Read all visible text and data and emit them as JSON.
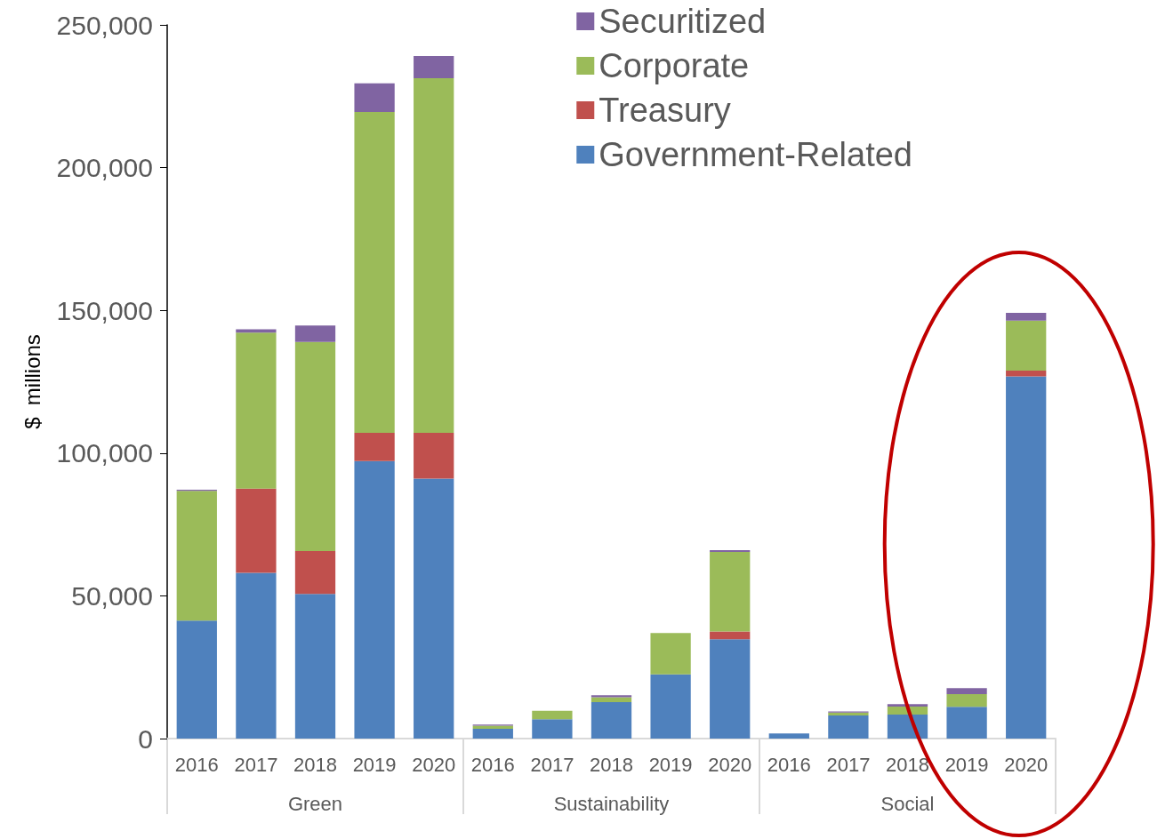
{
  "chart_data": {
    "type": "bar",
    "stacked": true,
    "ylabel": "$  millions",
    "categories": [
      "2016",
      "2017",
      "2018",
      "2019",
      "2020",
      "2016",
      "2017",
      "2018",
      "2019",
      "2020",
      "2016",
      "2017",
      "2018",
      "2019",
      "2020"
    ],
    "annotations": [
      "Green",
      "Sustainability",
      "Social"
    ],
    "series": [
      {
        "name": "Government-Related",
        "color": "#4f81bd",
        "values": [
          41300,
          58100,
          50700,
          97200,
          91100,
          3400,
          6800,
          12800,
          22500,
          34800,
          1800,
          8100,
          8400,
          11100,
          126900
        ]
      },
      {
        "name": "Treasury",
        "color": "#c0504d",
        "values": [
          null,
          29500,
          15000,
          9900,
          16000,
          null,
          null,
          null,
          null,
          2700,
          null,
          null,
          null,
          null,
          2000
        ]
      },
      {
        "name": "Corporate",
        "color": "#9bbb59",
        "values": [
          45500,
          54600,
          73200,
          112400,
          124200,
          1100,
          2900,
          1700,
          14500,
          27900,
          null,
          1000,
          2800,
          4500,
          17500
        ]
      },
      {
        "name": "Securitized",
        "color": "#8064a2",
        "values": [
          400,
          1200,
          5800,
          10000,
          7800,
          400,
          null,
          700,
          null,
          600,
          null,
          400,
          900,
          2100,
          2700
        ]
      }
    ],
    "ylim": [
      0,
      250000
    ],
    "yticks": [
      0,
      {
        "value": 50000,
        "label": "50,000"
      },
      {
        "value": 100000,
        "label": "100,000"
      },
      {
        "value": 150000,
        "label": "150,000"
      },
      {
        "value": 200000,
        "label": "200,000"
      },
      {
        "value": 250000,
        "label": "250,000"
      }
    ],
    "legend": "top right",
    "grid": false
  }
}
